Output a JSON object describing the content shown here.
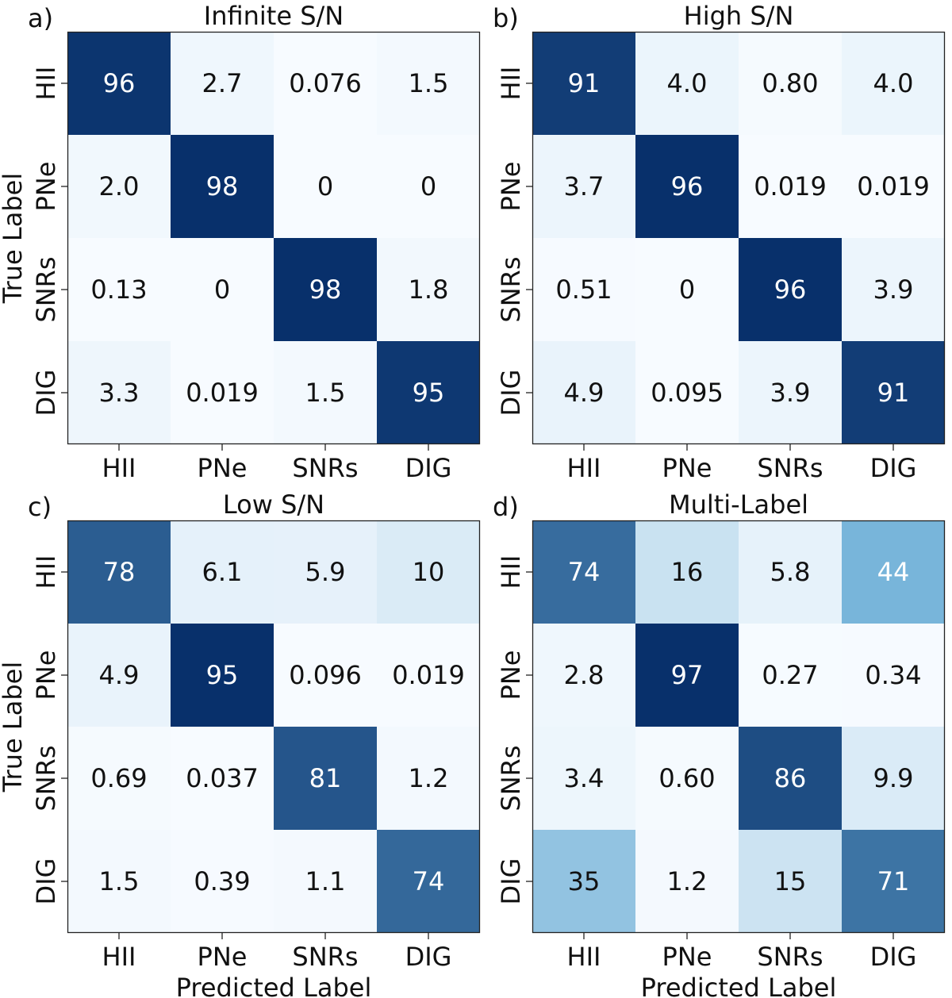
{
  "figure": {
    "row_axis_label": "True Label",
    "col_axis_label": "Predicted Label",
    "colormap": {
      "low": "#f7fbff",
      "mid": "#6baed6",
      "high": "#08306b",
      "dark_text": "#111111",
      "light_text": "#ffffff"
    }
  },
  "chart_data": [
    {
      "type": "heatmap",
      "panel_label": "a)",
      "title": "Infinite S/N",
      "xlabel": "",
      "ylabel": "True Label",
      "x_categories": [
        "HII",
        "PNe",
        "SNRs",
        "DIG"
      ],
      "y_categories": [
        "HII",
        "PNe",
        "SNRs",
        "DIG"
      ],
      "values": [
        [
          96,
          2.7,
          0.076,
          1.5
        ],
        [
          2.0,
          98,
          0,
          0
        ],
        [
          0.13,
          0,
          98,
          1.8
        ],
        [
          3.3,
          0.019,
          1.5,
          95
        ]
      ],
      "labels": [
        [
          "96",
          "2.7",
          "0.076",
          "1.5"
        ],
        [
          "2.0",
          "98",
          "0",
          "0"
        ],
        [
          "0.13",
          "0",
          "98",
          "1.8"
        ],
        [
          "3.3",
          "0.019",
          "1.5",
          "95"
        ]
      ]
    },
    {
      "type": "heatmap",
      "panel_label": "b)",
      "title": "High S/N",
      "xlabel": "",
      "ylabel": "",
      "x_categories": [
        "HII",
        "PNe",
        "SNRs",
        "DIG"
      ],
      "y_categories": [
        "HII",
        "PNe",
        "SNRs",
        "DIG"
      ],
      "values": [
        [
          91,
          4.0,
          0.8,
          4.0
        ],
        [
          3.7,
          96,
          0.019,
          0.019
        ],
        [
          0.51,
          0,
          96,
          3.9
        ],
        [
          4.9,
          0.095,
          3.9,
          91
        ]
      ],
      "labels": [
        [
          "91",
          "4.0",
          "0.80",
          "4.0"
        ],
        [
          "3.7",
          "96",
          "0.019",
          "0.019"
        ],
        [
          "0.51",
          "0",
          "96",
          "3.9"
        ],
        [
          "4.9",
          "0.095",
          "3.9",
          "91"
        ]
      ]
    },
    {
      "type": "heatmap",
      "panel_label": "c)",
      "title": "Low S/N",
      "xlabel": "Predicted Label",
      "ylabel": "True Label",
      "x_categories": [
        "HII",
        "PNe",
        "SNRs",
        "DIG"
      ],
      "y_categories": [
        "HII",
        "PNe",
        "SNRs",
        "DIG"
      ],
      "values": [
        [
          78,
          6.1,
          5.9,
          10
        ],
        [
          4.9,
          95,
          0.096,
          0.019
        ],
        [
          0.69,
          0.037,
          81,
          1.2
        ],
        [
          1.5,
          0.39,
          1.1,
          74
        ]
      ],
      "labels": [
        [
          "78",
          "6.1",
          "5.9",
          "10"
        ],
        [
          "4.9",
          "95",
          "0.096",
          "0.019"
        ],
        [
          "0.69",
          "0.037",
          "81",
          "1.2"
        ],
        [
          "1.5",
          "0.39",
          "1.1",
          "74"
        ]
      ]
    },
    {
      "type": "heatmap",
      "panel_label": "d)",
      "title": "Multi-Label",
      "xlabel": "Predicted Label",
      "ylabel": "",
      "x_categories": [
        "HII",
        "PNe",
        "SNRs",
        "DIG"
      ],
      "y_categories": [
        "HII",
        "PNe",
        "SNRs",
        "DIG"
      ],
      "values": [
        [
          74,
          16,
          5.8,
          44
        ],
        [
          2.8,
          97,
          0.27,
          0.34
        ],
        [
          3.4,
          0.6,
          86,
          9.9
        ],
        [
          35,
          1.2,
          15,
          71
        ]
      ],
      "labels": [
        [
          "74",
          "16",
          "5.8",
          "44"
        ],
        [
          "2.8",
          "97",
          "0.27",
          "0.34"
        ],
        [
          "3.4",
          "0.60",
          "86",
          "9.9"
        ],
        [
          "35",
          "1.2",
          "15",
          "71"
        ]
      ]
    }
  ]
}
